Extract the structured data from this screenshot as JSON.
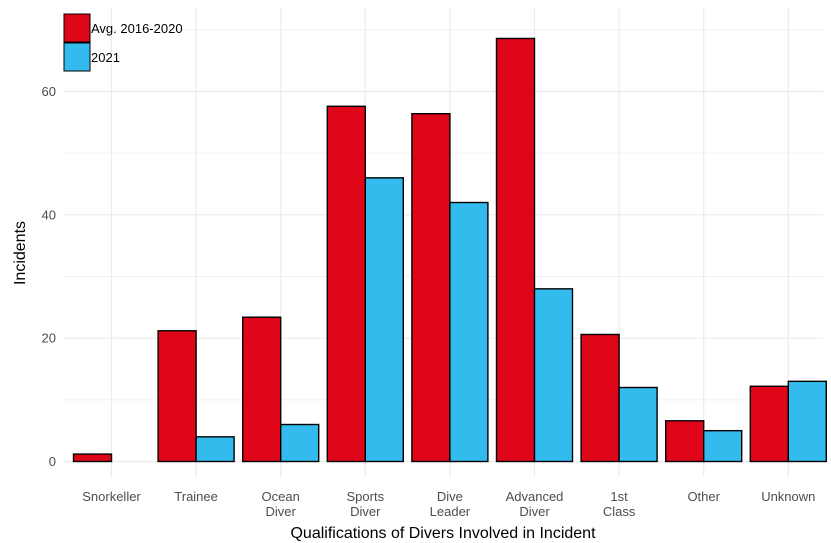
{
  "chart_data": {
    "type": "bar",
    "title": "",
    "xlabel": "Qualifications of Divers Involved in Incident",
    "ylabel": "Incidents",
    "categories": [
      [
        "Snorkeller"
      ],
      [
        "Trainee"
      ],
      [
        "Ocean",
        "Diver"
      ],
      [
        "Sports",
        "Diver"
      ],
      [
        "Dive",
        "Leader"
      ],
      [
        "Advanced",
        "Diver"
      ],
      [
        "1st",
        "Class"
      ],
      [
        "Other"
      ],
      [
        "Unknown"
      ]
    ],
    "series": [
      {
        "name": "Avg. 2016-2020",
        "color": "#e0061a",
        "values": [
          1.2,
          21.2,
          23.4,
          57.6,
          56.4,
          68.6,
          20.6,
          6.6,
          12.2
        ]
      },
      {
        "name": "2021",
        "color": "#33bbee",
        "values": [
          0,
          4,
          6,
          46,
          42,
          28,
          12,
          5,
          13
        ]
      }
    ],
    "ylim": [
      0,
      72
    ],
    "yticks": [
      0,
      20,
      40,
      60
    ],
    "grid": true,
    "legend_position": "top-left"
  }
}
